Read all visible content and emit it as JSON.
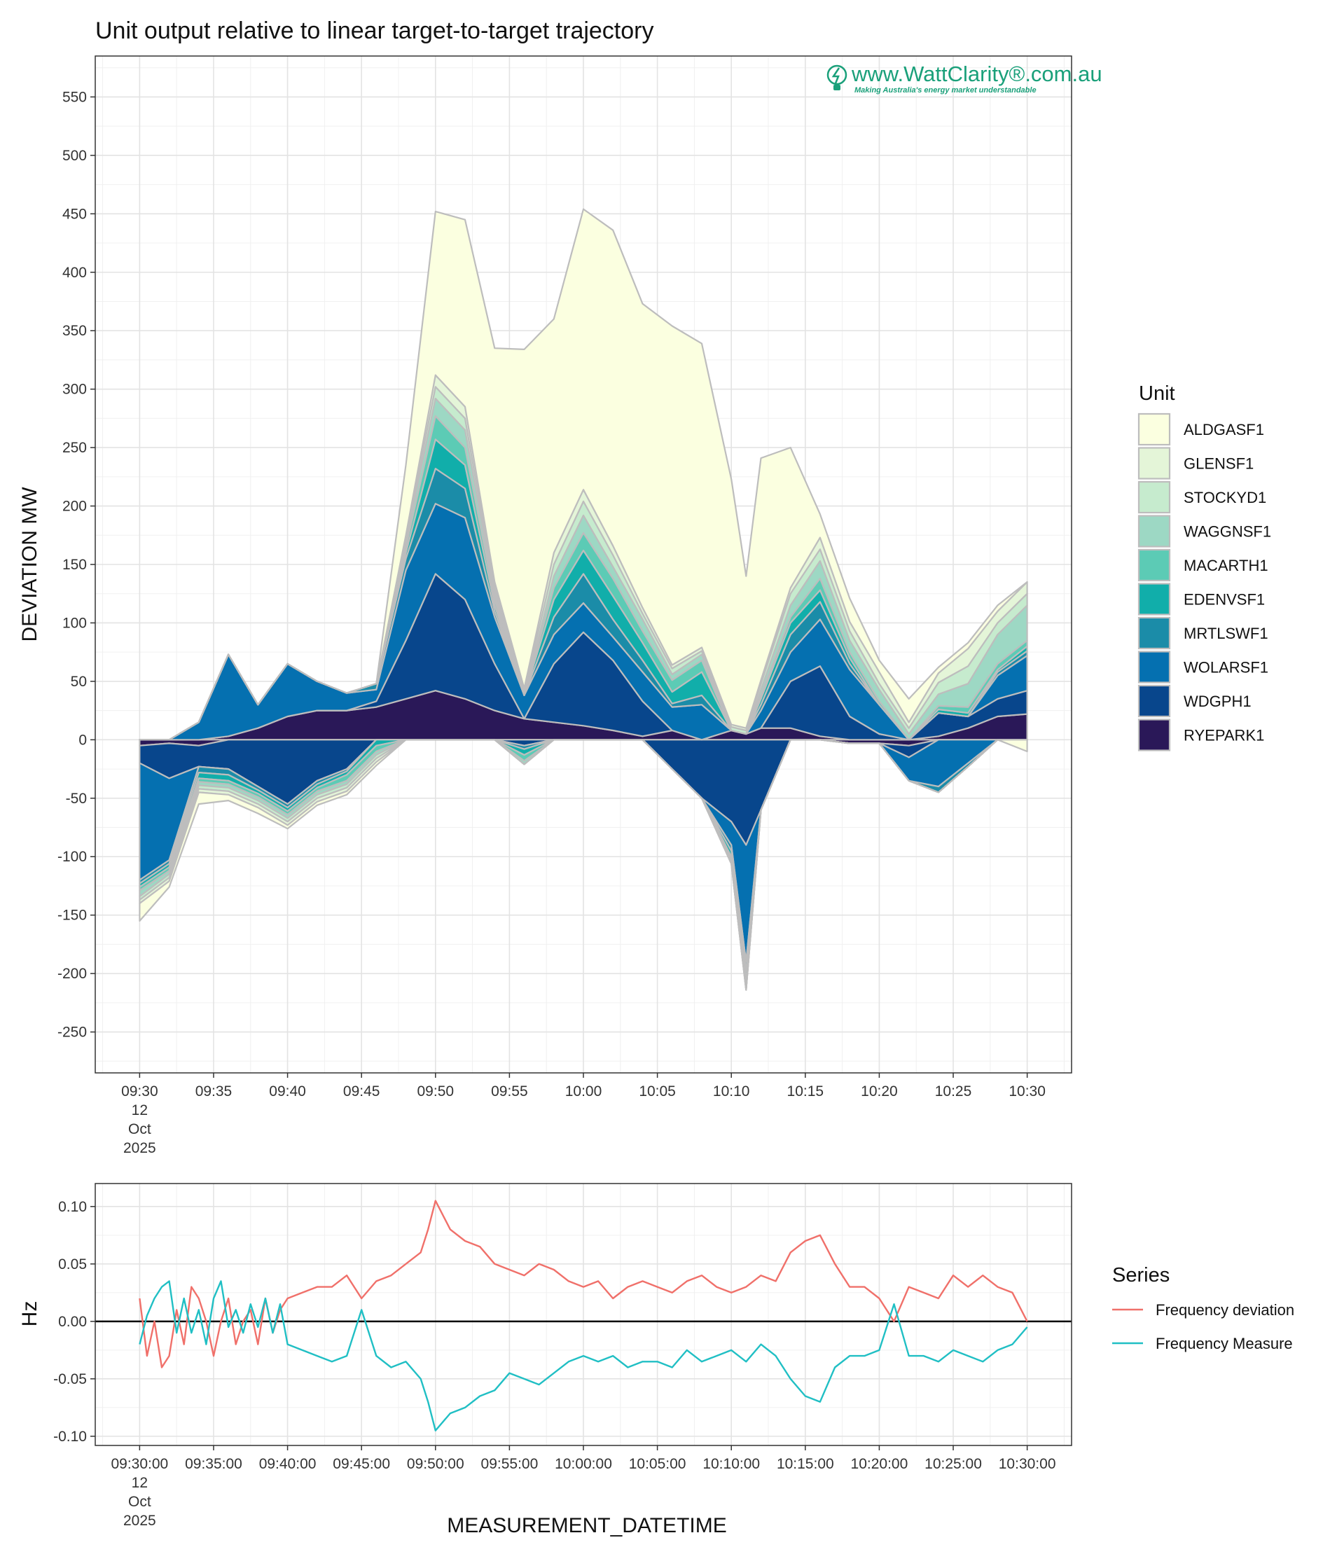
{
  "chart_data": [
    {
      "type": "area",
      "stacked": true,
      "title": "Unit output relative to linear target-to-target trajectory",
      "ylabel": "DEVIATION MW",
      "xlabel": "",
      "ylim": [
        -285,
        585
      ],
      "xlim_minutes": [
        -3,
        63
      ],
      "yticks": [
        550,
        500,
        450,
        400,
        350,
        300,
        250,
        200,
        150,
        100,
        50,
        0,
        -50,
        -100,
        -150,
        -200,
        -250
      ],
      "xticks": [
        {
          "minute": 0,
          "lines": [
            "09:30",
            "12",
            "Oct",
            "2025"
          ]
        },
        {
          "minute": 5,
          "lines": [
            "09:35"
          ]
        },
        {
          "minute": 10,
          "lines": [
            "09:40"
          ]
        },
        {
          "minute": 15,
          "lines": [
            "09:45"
          ]
        },
        {
          "minute": 20,
          "lines": [
            "09:50"
          ]
        },
        {
          "minute": 25,
          "lines": [
            "09:55"
          ]
        },
        {
          "minute": 30,
          "lines": [
            "10:00"
          ]
        },
        {
          "minute": 35,
          "lines": [
            "10:05"
          ]
        },
        {
          "minute": 40,
          "lines": [
            "10:10"
          ]
        },
        {
          "minute": 45,
          "lines": [
            "10:15"
          ]
        },
        {
          "minute": 50,
          "lines": [
            "10:20"
          ]
        },
        {
          "minute": 55,
          "lines": [
            "10:25"
          ]
        },
        {
          "minute": 60,
          "lines": [
            "10:30"
          ]
        }
      ],
      "grid": true,
      "legend_title": "Unit",
      "legend_position": "right",
      "watermark": {
        "main": "www.WattClarity®.com.au",
        "sub": "Making Australia's energy market understandable"
      },
      "x_minutes": [
        0,
        2,
        4,
        6,
        8,
        10,
        12,
        14,
        16,
        18,
        20,
        22,
        24,
        26,
        28,
        30,
        32,
        34,
        36,
        38,
        40,
        41,
        42,
        44,
        46,
        48,
        50,
        52,
        54,
        56,
        58,
        60
      ],
      "series": [
        {
          "name": "RYEPARK1",
          "color": "#2a1858",
          "values": [
            -5,
            -3,
            -5,
            3,
            10,
            20,
            25,
            25,
            28,
            35,
            42,
            35,
            25,
            18,
            15,
            12,
            8,
            3,
            8,
            0,
            8,
            5,
            10,
            10,
            3,
            -3,
            -3,
            -5,
            3,
            10,
            20,
            22
          ]
        },
        {
          "name": "WDGPH1",
          "color": "#08468c",
          "values": [
            -15,
            -30,
            -18,
            -25,
            -40,
            -55,
            -35,
            -25,
            5,
            50,
            100,
            85,
            40,
            -5,
            50,
            80,
            60,
            30,
            -25,
            -50,
            -70,
            -90,
            -60,
            40,
            60,
            20,
            5,
            -10,
            20,
            10,
            15,
            20
          ]
        },
        {
          "name": "WOLARSF1",
          "color": "#0570b0",
          "values": [
            -100,
            -70,
            15,
            70,
            20,
            45,
            25,
            15,
            10,
            60,
            60,
            70,
            40,
            20,
            25,
            25,
            20,
            25,
            20,
            30,
            -20,
            -100,
            15,
            25,
            40,
            40,
            25,
            -20,
            -40,
            -20,
            20,
            30
          ]
        },
        {
          "name": "MRTLSWF1",
          "color": "#1b8ca8",
          "values": [
            -3,
            -3,
            -5,
            -5,
            -3,
            -3,
            -3,
            -2,
            5,
            10,
            30,
            25,
            5,
            -3,
            15,
            25,
            15,
            10,
            3,
            8,
            -5,
            -8,
            5,
            15,
            15,
            5,
            0,
            0,
            -5,
            -3,
            3,
            4
          ]
        },
        {
          "name": "EDENVSF1",
          "color": "#11aeaa",
          "values": [
            -3,
            -3,
            -5,
            -5,
            -3,
            -3,
            -3,
            -3,
            -5,
            5,
            25,
            20,
            5,
            -5,
            15,
            20,
            20,
            15,
            10,
            20,
            -5,
            -8,
            5,
            10,
            10,
            5,
            0,
            0,
            3,
            3,
            2,
            4
          ]
        },
        {
          "name": "MACARTH1",
          "color": "#5ccbb5",
          "values": [
            -3,
            -3,
            -3,
            -3,
            -3,
            -3,
            -3,
            -5,
            -5,
            5,
            20,
            15,
            5,
            -5,
            10,
            15,
            15,
            10,
            10,
            10,
            -3,
            -5,
            3,
            5,
            10,
            5,
            3,
            0,
            3,
            5,
            5,
            5
          ]
        },
        {
          "name": "WAGGNSF1",
          "color": "#9dd8c4",
          "values": [
            -5,
            -3,
            -3,
            -3,
            -3,
            -3,
            -3,
            -3,
            -3,
            5,
            15,
            15,
            5,
            -3,
            10,
            15,
            10,
            10,
            5,
            5,
            -3,
            -3,
            5,
            10,
            15,
            10,
            10,
            5,
            10,
            20,
            25,
            30
          ]
        },
        {
          "name": "STOCKYD1",
          "color": "#c6ebce",
          "values": [
            -3,
            -3,
            -3,
            -3,
            -3,
            -3,
            -3,
            -3,
            -3,
            3,
            10,
            10,
            5,
            3,
            10,
            12,
            10,
            5,
            5,
            3,
            3,
            3,
            5,
            10,
            10,
            8,
            5,
            5,
            10,
            15,
            10,
            10
          ]
        },
        {
          "name": "GLENSF1",
          "color": "#e4f5d8",
          "values": [
            -3,
            -3,
            -3,
            -3,
            -3,
            -3,
            -3,
            -3,
            -3,
            2,
            10,
            10,
            5,
            3,
            10,
            10,
            8,
            5,
            3,
            3,
            2,
            2,
            3,
            5,
            10,
            8,
            10,
            5,
            8,
            15,
            10,
            10
          ]
        },
        {
          "name": "ALDGASF1",
          "color": "#fbffe0",
          "values": [
            -15,
            -5,
            -10,
            -5,
            -5,
            -3,
            -3,
            -3,
            -3,
            60,
            140,
            160,
            200,
            290,
            200,
            240,
            270,
            260,
            290,
            260,
            210,
            130,
            190,
            120,
            20,
            20,
            10,
            20,
            5,
            5,
            5,
            -10
          ]
        }
      ]
    },
    {
      "type": "line",
      "ylabel": "Hz",
      "xlabel": "MEASUREMENT_DATETIME",
      "ylim": [
        -0.108,
        0.12
      ],
      "xlim_minutes": [
        -3,
        63
      ],
      "yticks": [
        "0.10",
        "0.05",
        "0.00",
        "-0.05",
        "-0.10"
      ],
      "yticks_values": [
        0.1,
        0.05,
        0.0,
        -0.05,
        -0.1
      ],
      "xticks": [
        {
          "minute": 0,
          "lines": [
            "09:30:00",
            "12",
            "Oct",
            "2025"
          ]
        },
        {
          "minute": 5,
          "lines": [
            "09:35:00"
          ]
        },
        {
          "minute": 10,
          "lines": [
            "09:40:00"
          ]
        },
        {
          "minute": 15,
          "lines": [
            "09:45:00"
          ]
        },
        {
          "minute": 20,
          "lines": [
            "09:50:00"
          ]
        },
        {
          "minute": 25,
          "lines": [
            "09:55:00"
          ]
        },
        {
          "minute": 30,
          "lines": [
            "10:00:00"
          ]
        },
        {
          "minute": 35,
          "lines": [
            "10:05:00"
          ]
        },
        {
          "minute": 40,
          "lines": [
            "10:10:00"
          ]
        },
        {
          "minute": 45,
          "lines": [
            "10:15:00"
          ]
        },
        {
          "minute": 50,
          "lines": [
            "10:20:00"
          ]
        },
        {
          "minute": 55,
          "lines": [
            "10:25:00"
          ]
        },
        {
          "minute": 60,
          "lines": [
            "10:30:00"
          ]
        }
      ],
      "grid": true,
      "hline": 0,
      "legend_title": "Series",
      "legend_position": "right",
      "x_minutes": [
        0,
        0.5,
        1,
        1.5,
        2,
        2.5,
        3,
        3.5,
        4,
        4.5,
        5,
        5.5,
        6,
        6.5,
        7,
        7.5,
        8,
        8.5,
        9,
        9.5,
        10,
        11,
        12,
        13,
        14,
        15,
        16,
        17,
        18,
        19,
        19.5,
        20,
        21,
        22,
        23,
        24,
        25,
        26,
        27,
        28,
        29,
        30,
        31,
        32,
        33,
        34,
        35,
        36,
        37,
        38,
        39,
        40,
        41,
        42,
        43,
        44,
        45,
        46,
        47,
        48,
        49,
        50,
        51,
        52,
        53,
        54,
        55,
        56,
        57,
        58,
        59,
        60
      ],
      "series": [
        {
          "name": "Frequency deviation",
          "color": "#f0706a",
          "values": [
            0.02,
            -0.03,
            0.0,
            -0.04,
            -0.03,
            0.01,
            -0.02,
            0.03,
            0.02,
            0.0,
            -0.03,
            0.0,
            0.02,
            -0.02,
            0.0,
            0.01,
            -0.02,
            0.02,
            -0.01,
            0.01,
            0.02,
            0.025,
            0.03,
            0.03,
            0.04,
            0.02,
            0.035,
            0.04,
            0.05,
            0.06,
            0.08,
            0.105,
            0.08,
            0.07,
            0.065,
            0.05,
            0.045,
            0.04,
            0.05,
            0.045,
            0.035,
            0.03,
            0.035,
            0.02,
            0.03,
            0.035,
            0.03,
            0.025,
            0.035,
            0.04,
            0.03,
            0.025,
            0.03,
            0.04,
            0.035,
            0.06,
            0.07,
            0.075,
            0.05,
            0.03,
            0.03,
            0.02,
            0.0,
            0.03,
            0.025,
            0.02,
            0.04,
            0.03,
            0.04,
            0.03,
            0.025,
            0.0
          ]
        },
        {
          "name": "Frequency Measure",
          "color": "#20bfc4",
          "values": [
            -0.02,
            0.005,
            0.02,
            0.03,
            0.035,
            -0.01,
            0.02,
            -0.01,
            0.01,
            -0.02,
            0.02,
            0.035,
            -0.005,
            0.01,
            -0.01,
            0.015,
            -0.005,
            0.02,
            -0.01,
            0.015,
            -0.02,
            -0.025,
            -0.03,
            -0.035,
            -0.03,
            0.01,
            -0.03,
            -0.04,
            -0.035,
            -0.05,
            -0.07,
            -0.095,
            -0.08,
            -0.075,
            -0.065,
            -0.06,
            -0.045,
            -0.05,
            -0.055,
            -0.045,
            -0.035,
            -0.03,
            -0.035,
            -0.03,
            -0.04,
            -0.035,
            -0.035,
            -0.04,
            -0.025,
            -0.035,
            -0.03,
            -0.025,
            -0.035,
            -0.02,
            -0.03,
            -0.05,
            -0.065,
            -0.07,
            -0.04,
            -0.03,
            -0.03,
            -0.025,
            0.015,
            -0.03,
            -0.03,
            -0.035,
            -0.025,
            -0.03,
            -0.035,
            -0.025,
            -0.02,
            -0.005
          ]
        }
      ]
    }
  ]
}
